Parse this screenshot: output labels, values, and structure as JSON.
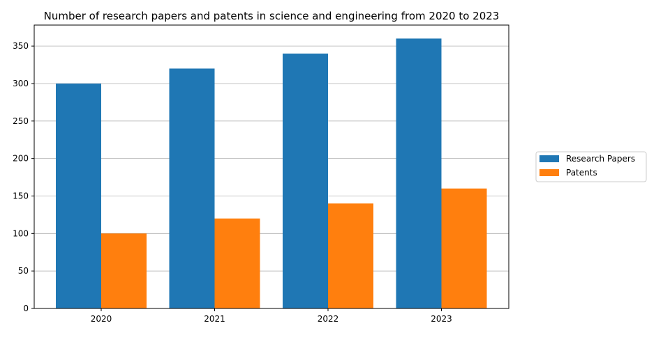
{
  "chart_data": {
    "type": "bar",
    "title": "Number of research papers and patents in science and engineering from 2020 to 2023",
    "xlabel": "",
    "ylabel": "",
    "categories": [
      "2020",
      "2021",
      "2022",
      "2023"
    ],
    "series": [
      {
        "name": "Research Papers",
        "values": [
          300,
          320,
          340,
          360
        ],
        "color": "#1f77b4"
      },
      {
        "name": "Patents",
        "values": [
          100,
          120,
          140,
          160
        ],
        "color": "#ff7f0e"
      }
    ],
    "ylim": [
      0,
      378
    ],
    "yticks": [
      0,
      50,
      100,
      150,
      200,
      250,
      300,
      350
    ],
    "grid": "y-axis horizontal lines",
    "legend_position": "right, outside plot"
  }
}
